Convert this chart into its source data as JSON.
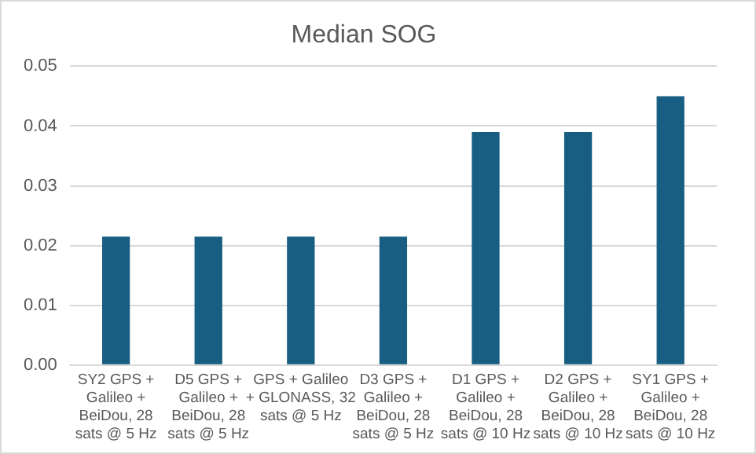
{
  "chart_data": {
    "type": "bar",
    "title": "Median SOG",
    "categories": [
      "SY2 GPS + Galileo + BeiDou, 28 sats @ 5 Hz",
      "D5 GPS + Galileo + BeiDou, 28 sats @ 5 Hz",
      "GPS + Galileo + GLONASS, 32 sats @ 5 Hz",
      "D3 GPS + Galileo + BeiDou, 28 sats @ 5 Hz",
      "D1 GPS + Galileo + BeiDou, 28 sats @ 10 Hz",
      "D2 GPS + Galileo + BeiDou, 28 sats @ 10 Hz",
      "SY1 GPS + Galileo + BeiDou, 28 sats @ 10 Hz"
    ],
    "values": [
      0.0215,
      0.0215,
      0.0215,
      0.0215,
      0.039,
      0.039,
      0.045
    ],
    "color": "#175e82",
    "ylim": [
      0,
      0.05
    ],
    "yticks": [
      {
        "value": 0,
        "label": "0.00"
      },
      {
        "value": 0.01,
        "label": "0.01"
      },
      {
        "value": 0.02,
        "label": "0.02"
      },
      {
        "value": 0.03,
        "label": "0.03"
      },
      {
        "value": 0.04,
        "label": "0.04"
      },
      {
        "value": 0.05,
        "label": "0.05"
      }
    ],
    "grid": "y"
  }
}
